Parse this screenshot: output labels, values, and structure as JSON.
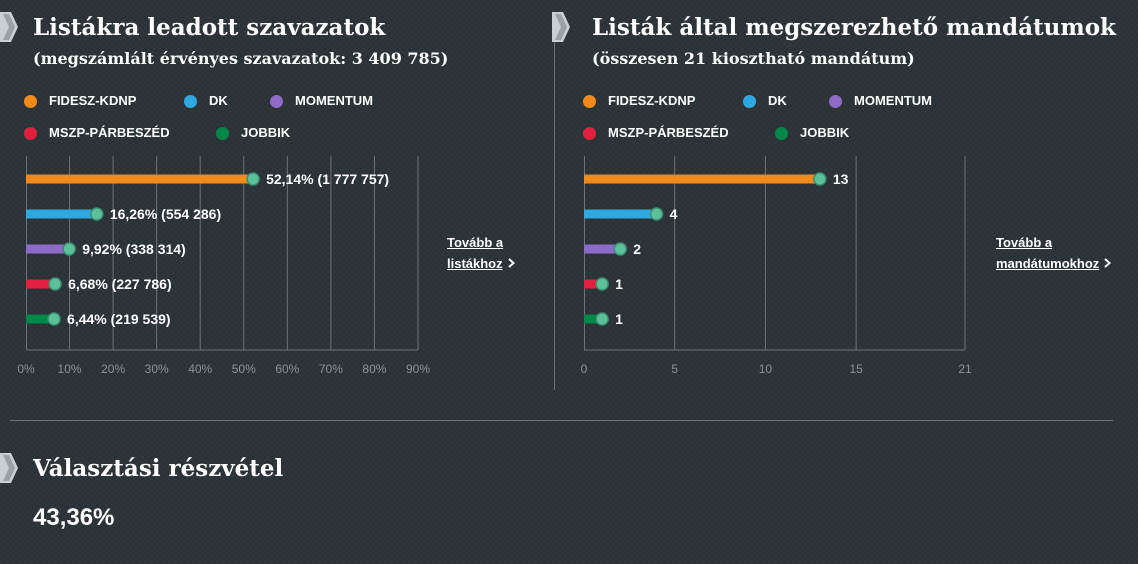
{
  "left_panel": {
    "title": "Listákra leadott szavazatok",
    "subtitle": "(megszámlált érvényes szavazatok: 3 409 785)",
    "more_link_line1": "Tovább a",
    "more_link_line2": "listákhoz"
  },
  "right_panel": {
    "title": "Listák által megszerezhető mandátumok",
    "subtitle": "(összesen 21 kiosztható mandátum)",
    "more_link_line1": "Tovább a",
    "more_link_line2": "mandátumokhoz"
  },
  "legend": [
    {
      "label": "FIDESZ-KDNP",
      "color": "#f28a1a"
    },
    {
      "label": "DK",
      "color": "#2ea8e0"
    },
    {
      "label": "MOMENTUM",
      "color": "#8e6bc9"
    },
    {
      "label": "MSZP-PÁRBESZÉD",
      "color": "#e0203f"
    },
    {
      "label": "JOBBIK",
      "color": "#00874a"
    }
  ],
  "turnout": {
    "title": "Választási részvétel",
    "value": "43,36%"
  },
  "colors": {
    "background": "#2b3236",
    "grid": "#6b7478",
    "dot": "#5cc19a",
    "tick": "#8a9398"
  },
  "chart_data": [
    {
      "type": "bar",
      "orientation": "horizontal",
      "title": "Listákra leadott szavazatok",
      "categories": [
        "FIDESZ-KDNP",
        "DK",
        "MOMENTUM",
        "MSZP-PÁRBESZÉD",
        "JOBBIK"
      ],
      "values": [
        52.14,
        16.26,
        9.92,
        6.68,
        6.44
      ],
      "labels": [
        "52,14% (1 777 757)",
        "16,26% (554 286)",
        "9,92% (338 314)",
        "6,68% (227 786)",
        "6,44% (219 539)"
      ],
      "colors": [
        "#f28a1a",
        "#2ea8e0",
        "#8e6bc9",
        "#e0203f",
        "#00874a"
      ],
      "xlim": [
        0,
        90
      ],
      "ticks": [
        0,
        10,
        20,
        30,
        40,
        50,
        60,
        70,
        80,
        90
      ],
      "tick_labels": [
        "0%",
        "10%",
        "20%",
        "30%",
        "40%",
        "50%",
        "60%",
        "70%",
        "80%",
        "90%"
      ],
      "grid": true
    },
    {
      "type": "bar",
      "orientation": "horizontal",
      "title": "Listák által megszerezhető mandátumok",
      "categories": [
        "FIDESZ-KDNP",
        "DK",
        "MOMENTUM",
        "MSZP-PÁRBESZÉD",
        "JOBBIK"
      ],
      "values": [
        13,
        4,
        2,
        1,
        1
      ],
      "labels": [
        "13",
        "4",
        "2",
        "1",
        "1"
      ],
      "colors": [
        "#f28a1a",
        "#2ea8e0",
        "#8e6bc9",
        "#e0203f",
        "#00874a"
      ],
      "xlim": [
        0,
        21
      ],
      "ticks": [
        0,
        5,
        10,
        15,
        21
      ],
      "tick_labels": [
        "0",
        "5",
        "10",
        "15",
        "21"
      ],
      "grid": true
    }
  ]
}
